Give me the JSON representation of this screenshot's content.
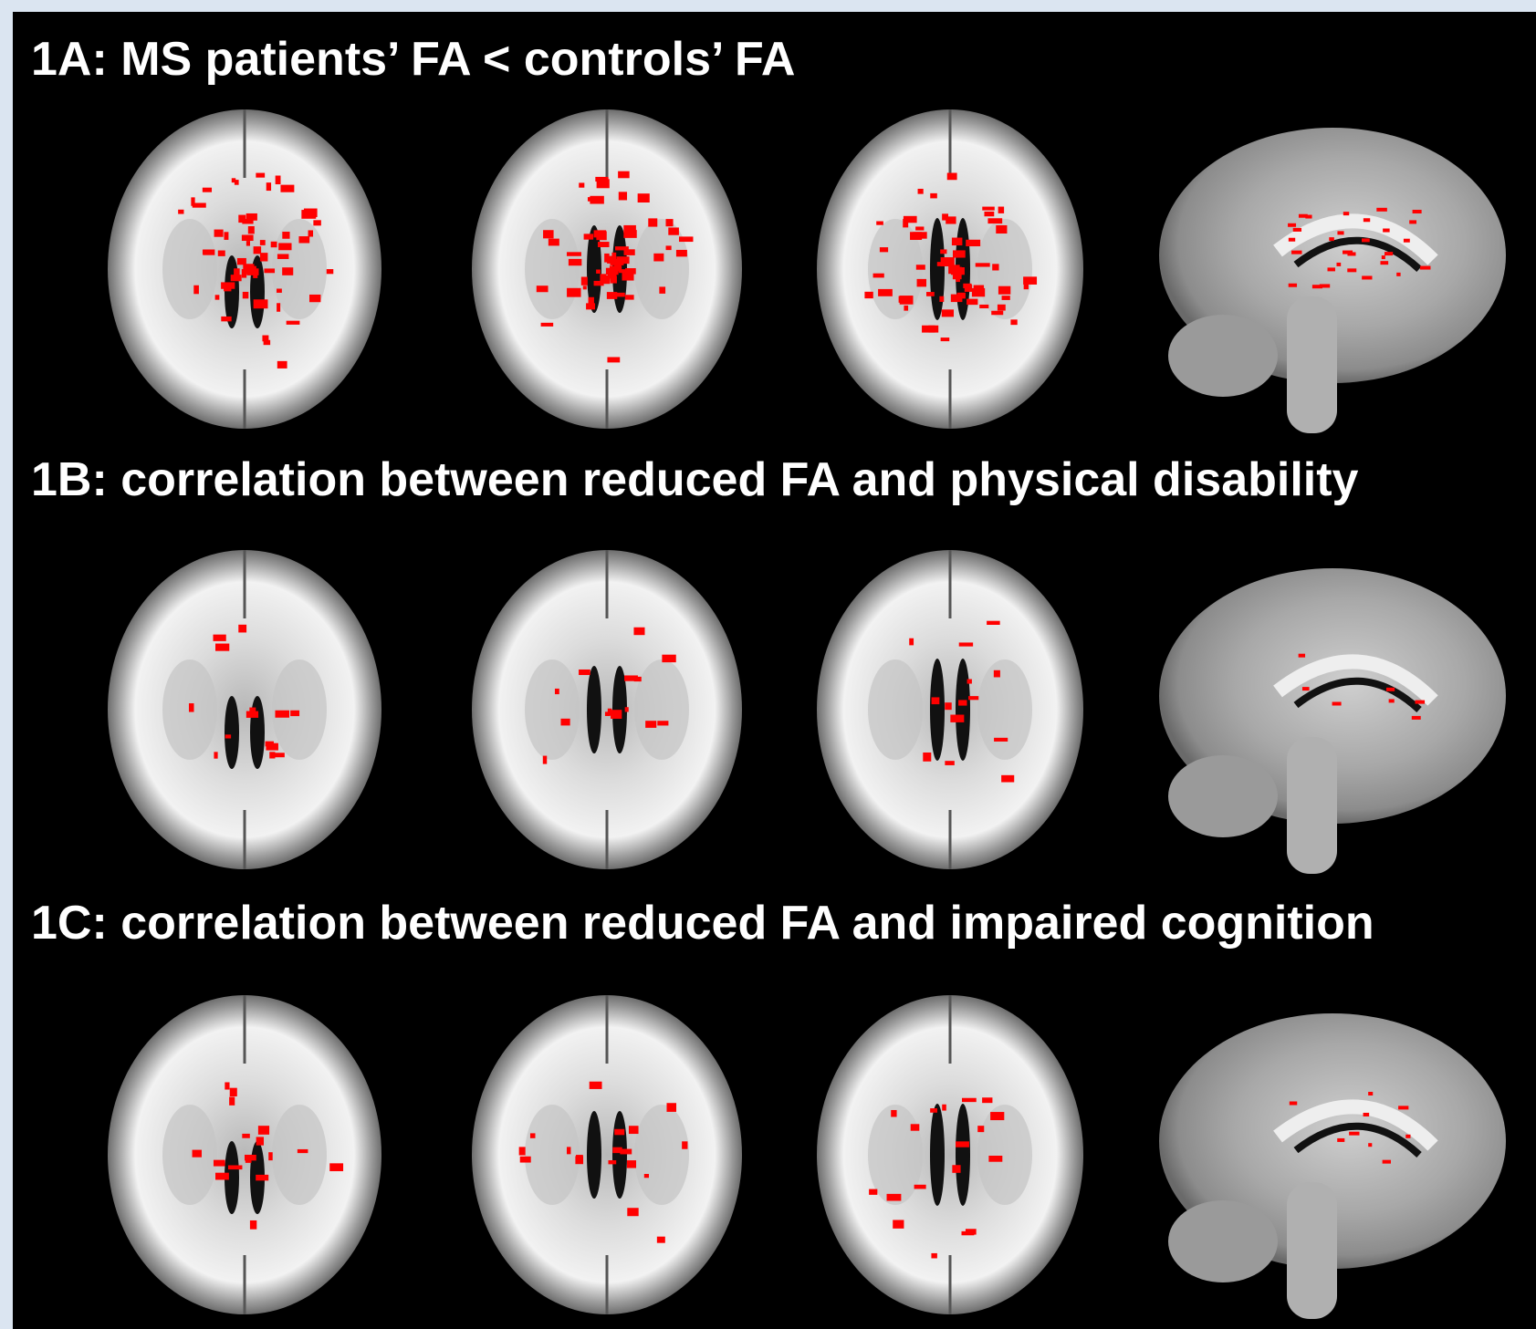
{
  "panels": [
    {
      "title": "1A: MS patients’ FA < controls’ FA"
    },
    {
      "title": "1B: correlation between reduced FA and physical disability"
    },
    {
      "title": "1C: correlation between reduced FA and impaired cognition"
    }
  ]
}
